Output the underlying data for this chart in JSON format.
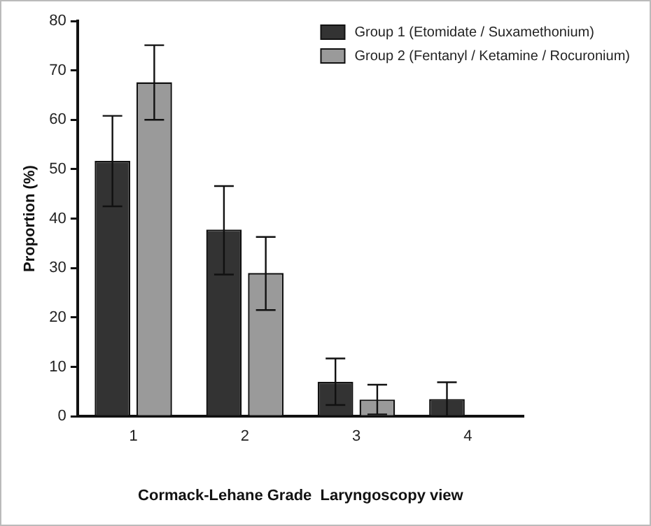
{
  "chart_data": {
    "type": "bar",
    "xlabel": "Cormack-Lehane Grade  Laryngoscopy view",
    "ylabel": "Proportion (%)",
    "categories": [
      "1",
      "2",
      "3",
      "4"
    ],
    "series": [
      {
        "name": "Group 1 (Etomidate / Suxamethonium)",
        "color": "#333333",
        "values": [
          51.7,
          37.8,
          7,
          3.5
        ],
        "errors": [
          [
            42.5,
            60.8
          ],
          [
            28.7,
            46.6
          ],
          [
            2.3,
            11.7
          ],
          [
            0,
            6.9
          ]
        ]
      },
      {
        "name": "Group 2 (Fentanyl / Ketamine / Rocuronium)",
        "color": "#9a9a9a",
        "values": [
          67.6,
          29,
          3.4,
          0
        ],
        "errors": [
          [
            60,
            75.1
          ],
          [
            21.5,
            36.3
          ],
          [
            0.4,
            6.4
          ],
          null
        ]
      }
    ],
    "ylim": [
      0,
      80
    ],
    "yticks": [
      0,
      10,
      20,
      30,
      40,
      50,
      60,
      70,
      80
    ],
    "grid": false,
    "legend": "top right"
  }
}
